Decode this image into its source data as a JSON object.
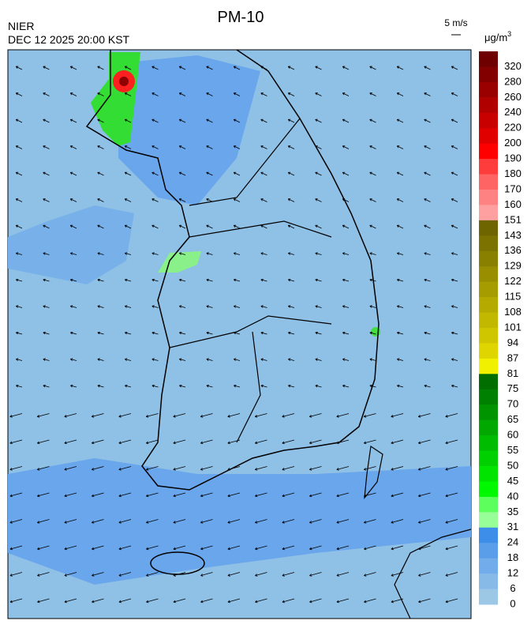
{
  "header": {
    "title": "PM-10",
    "agency": "NIER",
    "datetime": "DEC 12 2025 20:00 KST"
  },
  "wind_scale": {
    "label": "5 m/s"
  },
  "legend": {
    "unit": "μg/m",
    "unit_exponent": "3",
    "labels": [
      "320",
      "280",
      "260",
      "240",
      "220",
      "200",
      "190",
      "180",
      "170",
      "160",
      "151",
      "143",
      "136",
      "129",
      "122",
      "115",
      "108",
      "101",
      "94",
      "87",
      "81",
      "75",
      "70",
      "65",
      "60",
      "55",
      "50",
      "45",
      "40",
      "35",
      "31",
      "24",
      "18",
      "12",
      "6",
      "0"
    ],
    "colors": [
      "#6e0000",
      "#820000",
      "#9a0000",
      "#b00000",
      "#c80000",
      "#e00000",
      "#ff0000",
      "#ff3c3c",
      "#ff6464",
      "#ff8282",
      "#ffa0a0",
      "#6e6400",
      "#7c7200",
      "#8a8000",
      "#988e00",
      "#a69c00",
      "#b4aa00",
      "#c2b800",
      "#d0c600",
      "#dfd500",
      "#f0f000",
      "#006e00",
      "#008000",
      "#009400",
      "#00a800",
      "#00bc00",
      "#00d000",
      "#00e400",
      "#00f800",
      "#5cff5c",
      "#98ff98",
      "#3c8ee8",
      "#5a9eea",
      "#72acea",
      "#88bae8",
      "#9cc8e6"
    ]
  }
}
